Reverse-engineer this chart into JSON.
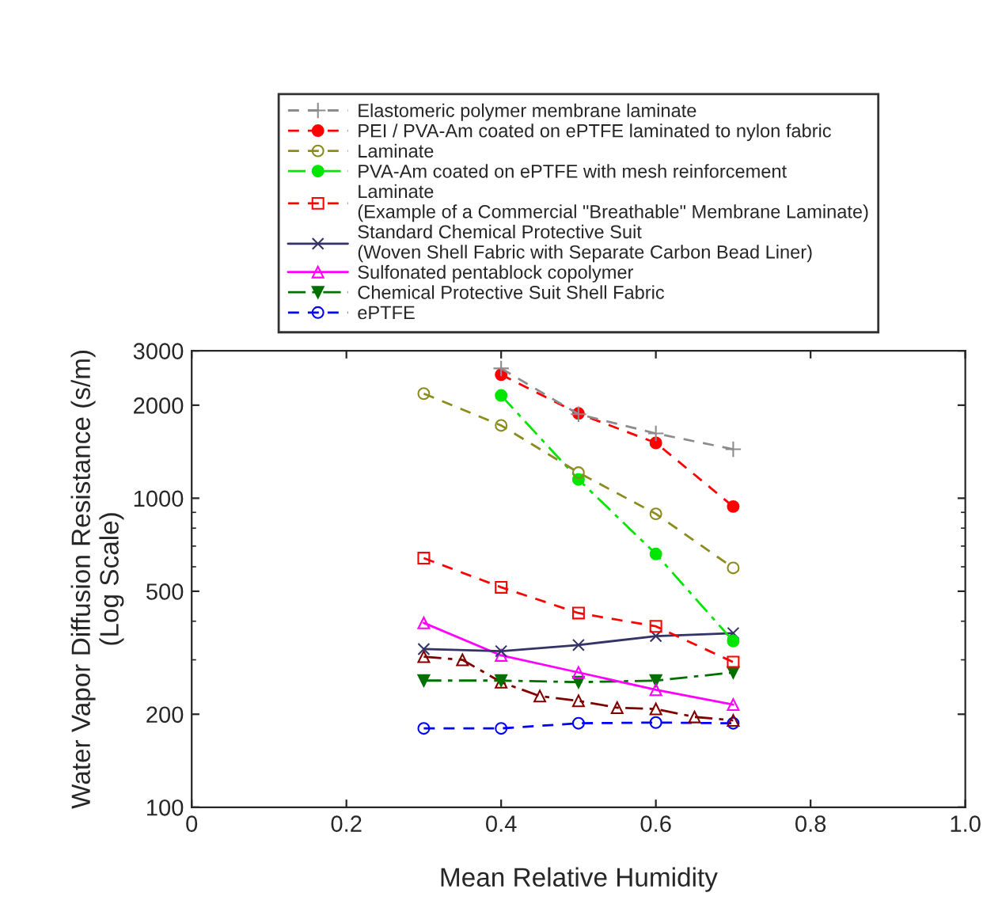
{
  "chart_data": {
    "type": "line",
    "xlabel": "Mean Relative Humidity",
    "ylabel": "Water Vapor Diffusion Resistance (s/m)\n(Log Scale)",
    "log": "y",
    "xlim": [
      0,
      1
    ],
    "xticks": [
      0,
      {
        "value": 0.2,
        "label": "0.2"
      },
      {
        "value": 0.4,
        "label": "0.4"
      },
      {
        "value": 0.6,
        "label": "0.6"
      },
      {
        "value": 0.8,
        "label": "0.8"
      },
      {
        "value": 1,
        "label": "1.0"
      }
    ],
    "ylim": [
      100,
      3000
    ],
    "yticks": [
      100,
      200,
      500,
      1000,
      2000,
      3000
    ],
    "grid": false,
    "legend": "top",
    "series": [
      {
        "name": "Elastomeric polymer membrane laminate",
        "color": "#8c8c8c",
        "marker": "plus",
        "line_style": "dashed",
        "x": [
          0.4,
          0.5,
          0.6,
          0.7
        ],
        "values": [
          2630,
          1870,
          1620,
          1440
        ]
      },
      {
        "name": "PEI / PVA-Am coated on ePTFE laminated to nylon fabric",
        "color": "#ff0000",
        "marker": "circle",
        "line_style": "dashed",
        "x": [
          0.4,
          0.5,
          0.6,
          0.7
        ],
        "values": [
          2510,
          1880,
          1510,
          940
        ]
      },
      {
        "name": "Laminate",
        "color": "#8c8c1e",
        "marker": "open circle",
        "line_style": "dashed",
        "x": [
          0.3,
          0.4,
          0.5,
          0.6,
          0.7
        ],
        "values": [
          2180,
          1720,
          1210,
          890,
          595
        ]
      },
      {
        "name": "PVA-Am coated on ePTFE with mesh reinforcement",
        "color": "#00e600",
        "marker": "circle",
        "line_style": "dashdot",
        "x": [
          0.4,
          0.5,
          0.6,
          0.7
        ],
        "values": [
          2150,
          1150,
          660,
          345
        ]
      },
      {
        "name": "Laminate\n(Example of a Commercial \"Breathable\" Membrane Laminate)",
        "color": "#ff0000",
        "marker": "square",
        "line_style": "dashed",
        "x": [
          0.3,
          0.4,
          0.5,
          0.6,
          0.7
        ],
        "values": [
          640,
          515,
          425,
          385,
          295
        ]
      },
      {
        "name": "Standard Chemical Protective Suit\n(Woven Shell Fabric with Separate Carbon Bead Liner)",
        "color": "#333366",
        "marker": "cross",
        "line_style": "solid",
        "x": [
          0.3,
          0.4,
          0.5,
          0.6,
          0.7
        ],
        "values": [
          325,
          320,
          335,
          358,
          366
        ]
      },
      {
        "name": "Sulfonated pentablock copolymer",
        "color": "#ff00ff",
        "marker": "triangle",
        "line_style": "solid",
        "x": [
          0.3,
          0.4,
          0.5,
          0.6,
          0.7
        ],
        "values": [
          395,
          310,
          273,
          240,
          215
        ]
      },
      {
        "name": "Chemical Protective Suit Shell Fabric",
        "color": "#007000",
        "marker": "triangle_down",
        "line_style": "dashdot",
        "x": [
          0.3,
          0.4,
          0.5,
          0.6,
          0.7
        ],
        "values": [
          257,
          257,
          254,
          257,
          273
        ]
      },
      {
        "color": "#800000",
        "marker": "triangle",
        "line_style": "dashdot",
        "x": [
          0.3,
          0.35,
          0.4,
          0.45,
          0.5,
          0.55,
          0.6,
          0.65,
          0.7
        ],
        "values": [
          307,
          300,
          254,
          229,
          221,
          210,
          208,
          196,
          191
        ]
      },
      {
        "name": "ePTFE",
        "color": "#0000ff",
        "marker": "open circle",
        "line_style": "dashed",
        "x": [
          0.3,
          0.4,
          0.5,
          0.6,
          0.7
        ],
        "values": [
          180,
          180,
          187,
          188,
          187
        ]
      }
    ]
  }
}
